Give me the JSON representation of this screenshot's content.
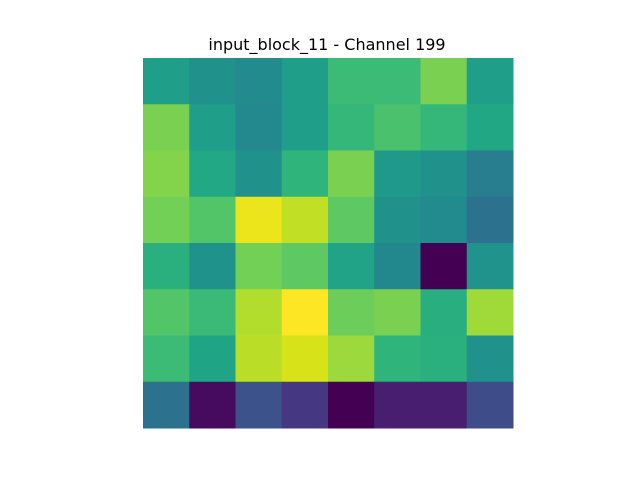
{
  "chart_data": {
    "type": "heatmap",
    "title": "input_block_11 - Channel 199",
    "xlabel": "",
    "ylabel": "",
    "colormap": "viridis",
    "rows": 8,
    "cols": 8,
    "grid": false,
    "axes_visible": false,
    "cell_colors": [
      [
        "#1f9e89",
        "#21918c",
        "#228b8d",
        "#1f9e89",
        "#3bbb75",
        "#3bbb75",
        "#7ad151",
        "#1f9e89"
      ],
      [
        "#7ad151",
        "#1f9e89",
        "#23898e",
        "#1f9e89",
        "#35b779",
        "#4ac16d",
        "#35b779",
        "#22a785"
      ],
      [
        "#84d44b",
        "#22a884",
        "#21918c",
        "#2fb47c",
        "#7ad151",
        "#1f9a8a",
        "#21918c",
        "#287d8e"
      ],
      [
        "#73d056",
        "#52c569",
        "#ece51b",
        "#c0df25",
        "#5ec962",
        "#21918c",
        "#228b8d",
        "#2c728e"
      ],
      [
        "#2ab07f",
        "#20928c",
        "#73d056",
        "#5ec962",
        "#20a386",
        "#23888e",
        "#440154",
        "#20938c"
      ],
      [
        "#52c569",
        "#3aba76",
        "#b2dd2d",
        "#fde725",
        "#6ccd5a",
        "#7ad151",
        "#29af7f",
        "#a0da39"
      ],
      [
        "#3bbb75",
        "#20a486",
        "#bade28",
        "#d8e219",
        "#9bd93c",
        "#2fb47c",
        "#2ab07f",
        "#21918c"
      ],
      [
        "#2c728e",
        "#460b5e",
        "#3b528b",
        "#453781",
        "#440154",
        "#481f70",
        "#481f70",
        "#3e4c8a"
      ]
    ]
  }
}
